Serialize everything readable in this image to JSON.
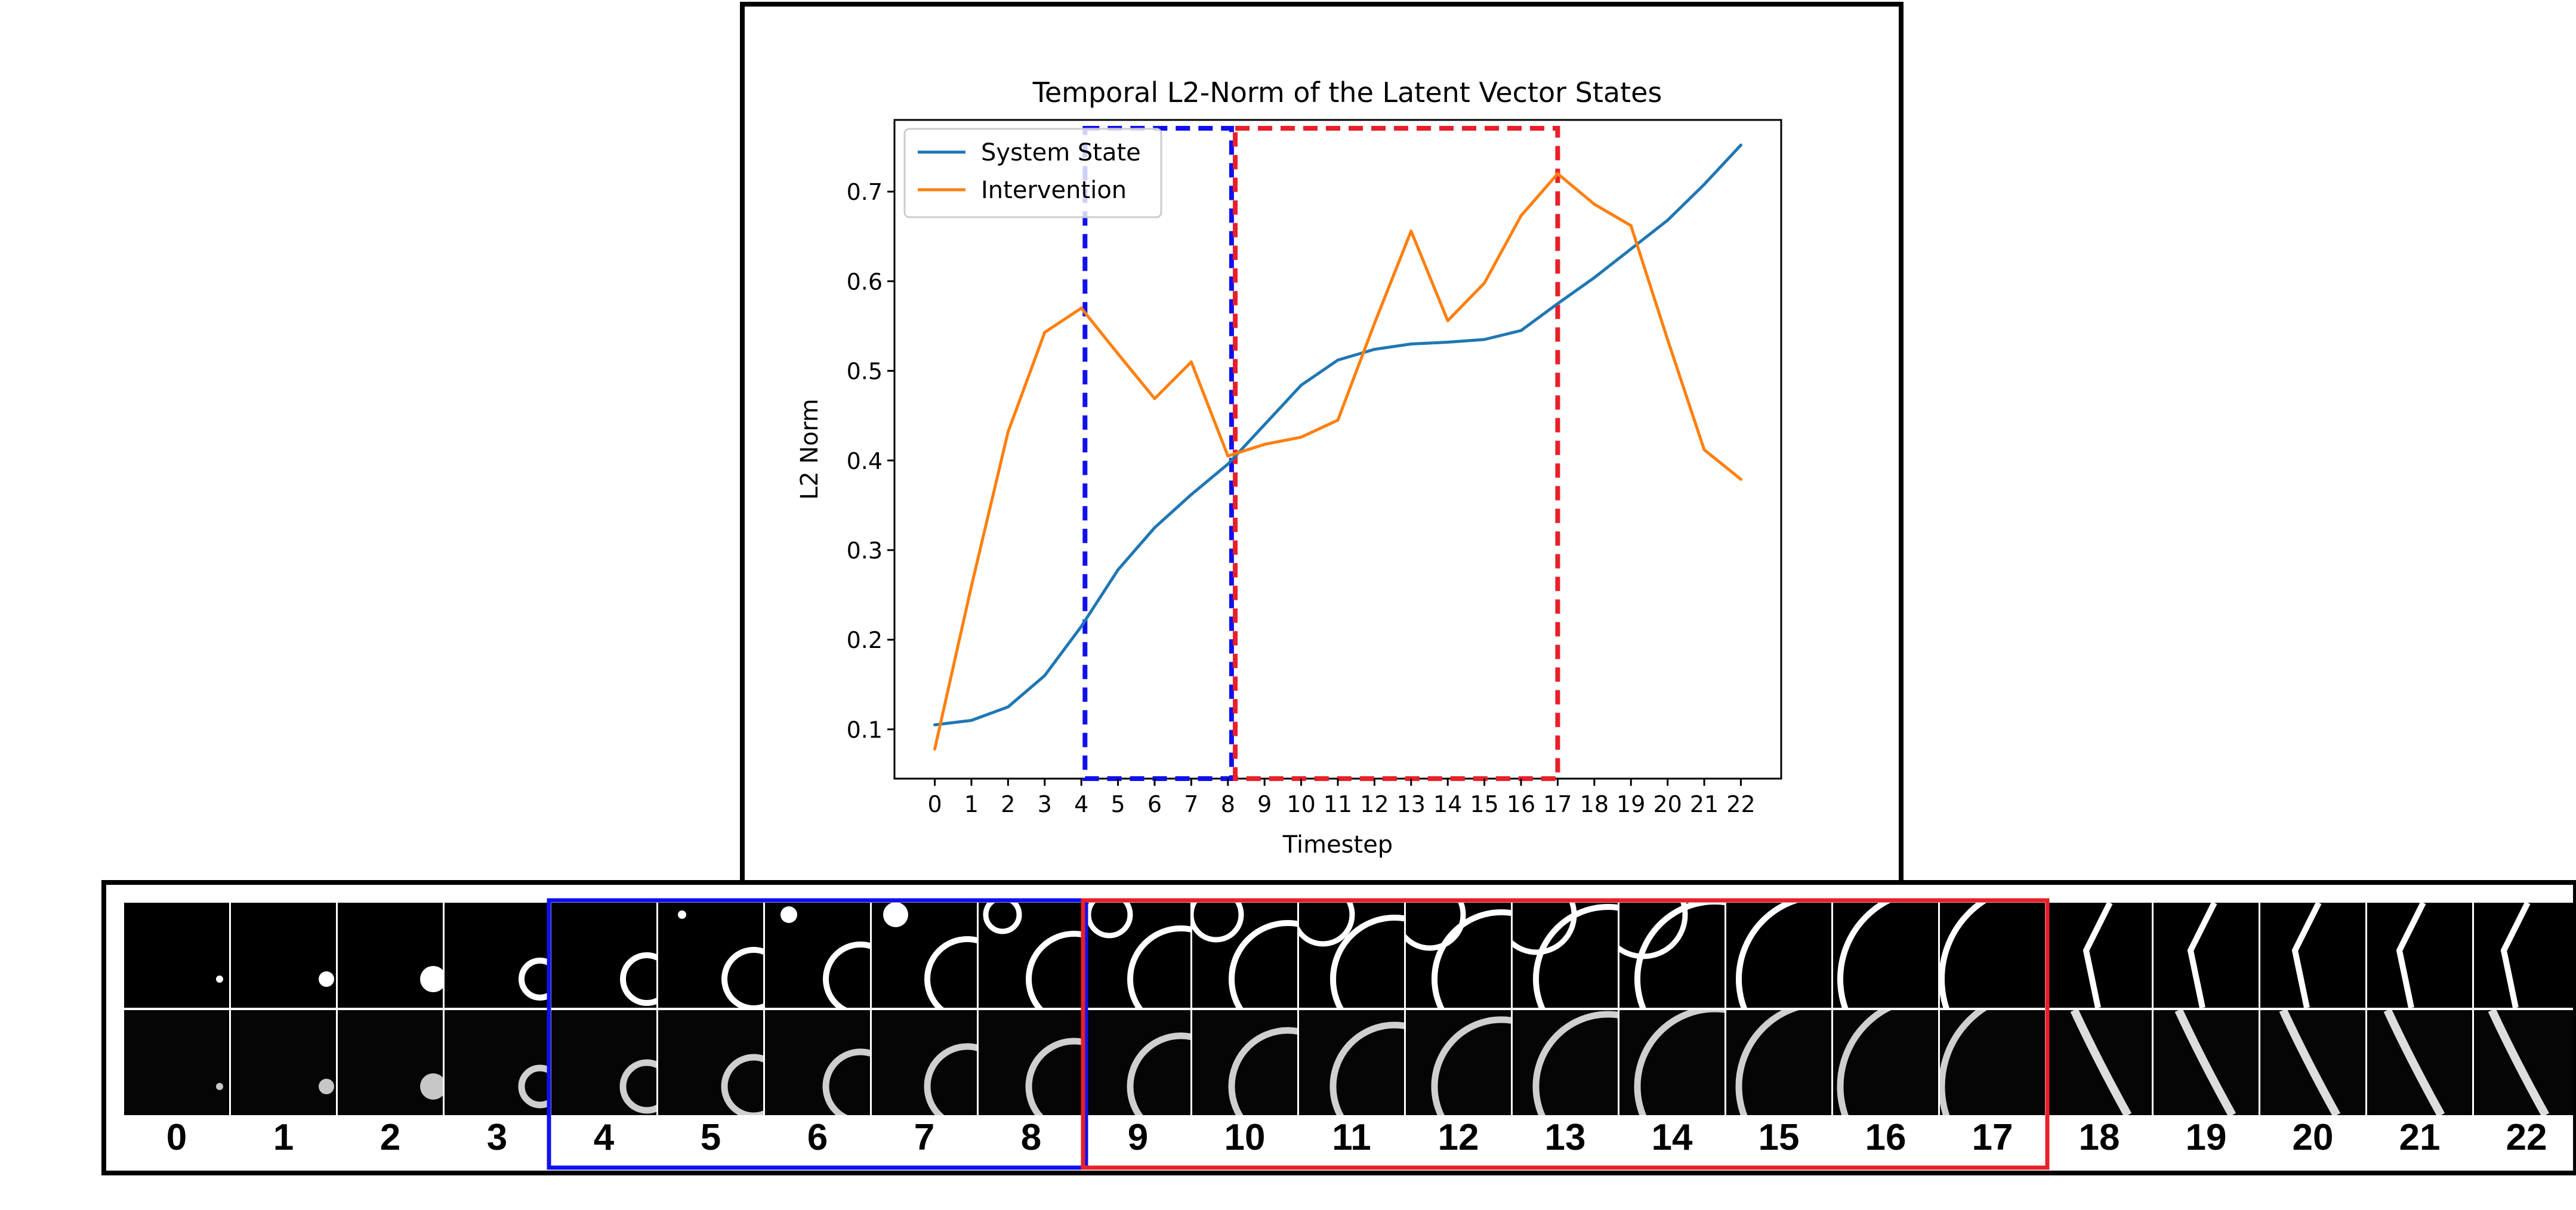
{
  "chart_data": {
    "type": "line",
    "title": "Temporal L2-Norm of the Latent Vector States",
    "xlabel": "Timestep",
    "ylabel": "L2 Norm",
    "x": [
      0,
      1,
      2,
      3,
      4,
      5,
      6,
      7,
      8,
      9,
      10,
      11,
      12,
      13,
      14,
      15,
      16,
      17,
      18,
      19,
      20,
      21,
      22
    ],
    "xlim": [
      -1.1,
      23.1
    ],
    "ylim": [
      0.045,
      0.78
    ],
    "yticks": [
      0.1,
      0.2,
      0.3,
      0.4,
      0.5,
      0.6,
      0.7
    ],
    "ytick_labels": [
      "0.1",
      "0.2",
      "0.3",
      "0.4",
      "0.5",
      "0.6",
      "0.7"
    ],
    "xtick_labels": [
      "0",
      "1",
      "2",
      "3",
      "4",
      "5",
      "6",
      "7",
      "8",
      "9",
      "10",
      "11",
      "12",
      "13",
      "14",
      "15",
      "16",
      "17",
      "18",
      "19",
      "20",
      "21",
      "22"
    ],
    "legend_position": "top-left",
    "series": [
      {
        "name": "System State",
        "color": "#1f77b4",
        "values": [
          0.105,
          0.11,
          0.125,
          0.16,
          0.215,
          0.278,
          0.325,
          0.362,
          0.396,
          0.44,
          0.484,
          0.512,
          0.524,
          0.53,
          0.532,
          0.535,
          0.545,
          0.575,
          0.604,
          0.636,
          0.668,
          0.708,
          0.752
        ]
      },
      {
        "name": "Intervention",
        "color": "#ff7f0e",
        "values": [
          0.078,
          0.26,
          0.432,
          0.543,
          0.57,
          0.519,
          0.469,
          0.51,
          0.405,
          0.418,
          0.426,
          0.445,
          0.553,
          0.656,
          0.556,
          0.598,
          0.673,
          0.72,
          0.686,
          0.662,
          0.535,
          0.412,
          0.379
        ]
      }
    ],
    "highlight_regions": [
      {
        "x_start": 4.1,
        "x_end": 8.1,
        "color": "#1010ee"
      },
      {
        "x_start": 8.2,
        "x_end": 17.0,
        "color": "#e8202a"
      }
    ]
  },
  "frame_strip": {
    "frame_labels": [
      "0",
      "1",
      "2",
      "3",
      "4",
      "5",
      "6",
      "7",
      "8",
      "9",
      "10",
      "11",
      "12",
      "13",
      "14",
      "15",
      "16",
      "17",
      "18",
      "19",
      "20",
      "21",
      "22"
    ],
    "highlight_groups": [
      {
        "from": 4,
        "to": 8,
        "color": "#1010ee"
      },
      {
        "from": 9,
        "to": 17,
        "color": "#e8202a"
      }
    ]
  }
}
